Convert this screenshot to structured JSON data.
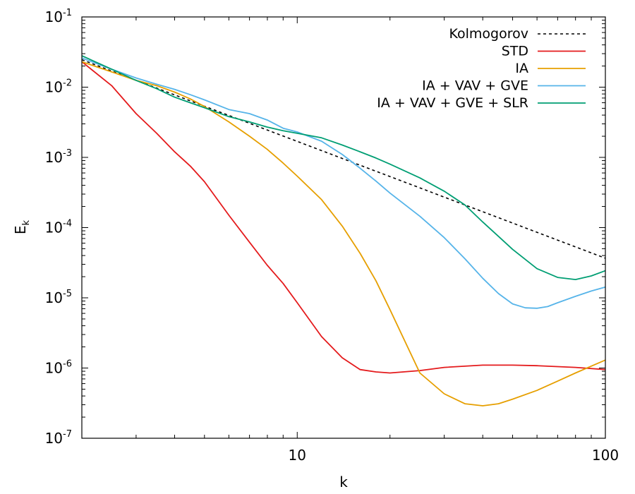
{
  "chart_data": {
    "type": "line",
    "xscale": "log",
    "yscale": "log",
    "xlim": [
      2,
      100
    ],
    "ylim": [
      1e-07,
      0.1
    ],
    "xlabel": "k",
    "ylabel": {
      "base": "E",
      "sub": "k"
    },
    "x_ticks": [
      {
        "value": 10,
        "label": "10"
      },
      {
        "value": 100,
        "label": "100"
      }
    ],
    "y_ticks": [
      {
        "value": 0.1,
        "base": "10",
        "exp": "-1"
      },
      {
        "value": 0.01,
        "base": "10",
        "exp": "-2"
      },
      {
        "value": 0.001,
        "base": "10",
        "exp": "-3"
      },
      {
        "value": 0.0001,
        "base": "10",
        "exp": "-4"
      },
      {
        "value": 1e-05,
        "base": "10",
        "exp": "-5"
      },
      {
        "value": 1e-06,
        "base": "10",
        "exp": "-6"
      },
      {
        "value": 1e-07,
        "base": "10",
        "exp": "-7"
      }
    ],
    "legend_position": "top-right",
    "series": [
      {
        "name": "Kolmogorov",
        "color": "#000000",
        "dash": true,
        "x": [
          2,
          100
        ],
        "y": [
          0.0246,
          3.66e-05
        ]
      },
      {
        "name": "STD",
        "color": "#e41a1c",
        "x": [
          2,
          2.5,
          3,
          3.5,
          4,
          4.5,
          5,
          6,
          7,
          8,
          9,
          10,
          12,
          14,
          16,
          18,
          20,
          25,
          30,
          40,
          50,
          60,
          80,
          100
        ],
        "y": [
          0.023,
          0.0105,
          0.0042,
          0.0022,
          0.0012,
          0.00075,
          0.00045,
          0.00015,
          6.2e-05,
          2.9e-05,
          1.6e-05,
          8.5e-06,
          2.8e-06,
          1.4e-06,
          9.5e-07,
          8.8e-07,
          8.5e-07,
          9.2e-07,
          1.02e-06,
          1.1e-06,
          1.1e-06,
          1.08e-06,
          1.02e-06,
          9.5e-07
        ]
      },
      {
        "name": "IA",
        "color": "#e69f00",
        "x": [
          2,
          2.5,
          3,
          3.5,
          4,
          4.5,
          5,
          6,
          7,
          8,
          9,
          10,
          12,
          14,
          16,
          18,
          20,
          25,
          30,
          35,
          40,
          45,
          50,
          60,
          70,
          80,
          100
        ],
        "y": [
          0.023,
          0.0165,
          0.0125,
          0.0105,
          0.0085,
          0.0068,
          0.0053,
          0.0032,
          0.002,
          0.0013,
          0.00083,
          0.00054,
          0.00025,
          0.000105,
          4.3e-05,
          1.75e-05,
          6.8e-06,
          8.5e-07,
          4.3e-07,
          3.1e-07,
          2.9e-07,
          3.1e-07,
          3.6e-07,
          4.8e-07,
          6.5e-07,
          8.5e-07,
          1.3e-06
        ]
      },
      {
        "name": "IA + VAV + GVE",
        "color": "#56b4e9",
        "x": [
          2,
          2.5,
          3,
          3.5,
          4,
          4.5,
          5,
          6,
          7,
          8,
          9,
          10,
          12,
          14,
          16,
          18,
          20,
          25,
          30,
          35,
          40,
          45,
          50,
          55,
          60,
          65,
          70,
          80,
          90,
          100
        ],
        "y": [
          0.026,
          0.018,
          0.0135,
          0.011,
          0.0093,
          0.0078,
          0.0066,
          0.0048,
          0.0042,
          0.0034,
          0.0026,
          0.0023,
          0.0017,
          0.0011,
          0.0007,
          0.00046,
          0.00031,
          0.000145,
          7.2e-05,
          3.6e-05,
          1.9e-05,
          1.15e-05,
          8.2e-06,
          7.2e-06,
          7.1e-06,
          7.5e-06,
          8.5e-06,
          1.05e-05,
          1.25e-05,
          1.42e-05
        ]
      },
      {
        "name": "IA + VAV + GVE + SLR",
        "color": "#009e73",
        "x": [
          2,
          2.5,
          3,
          3.5,
          4,
          4.5,
          5,
          6,
          7,
          8,
          9,
          10,
          12,
          14,
          16,
          18,
          20,
          25,
          30,
          35,
          40,
          45,
          50,
          60,
          70,
          80,
          90,
          100
        ],
        "y": [
          0.028,
          0.018,
          0.0125,
          0.0095,
          0.0072,
          0.006,
          0.0051,
          0.0038,
          0.0032,
          0.0027,
          0.0024,
          0.0022,
          0.0019,
          0.0015,
          0.0012,
          0.00098,
          0.0008,
          0.00051,
          0.00033,
          0.00021,
          0.00012,
          7.5e-05,
          4.9e-05,
          2.6e-05,
          1.95e-05,
          1.82e-05,
          2.05e-05,
          2.43e-05
        ]
      }
    ]
  }
}
